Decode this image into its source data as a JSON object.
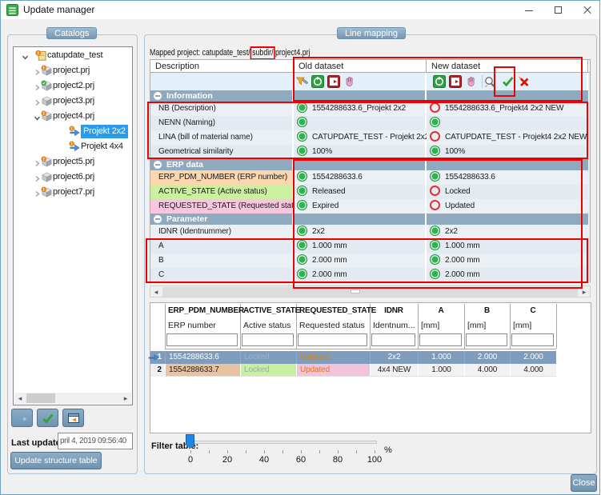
{
  "window": {
    "title": "Update manager"
  },
  "catalogs": {
    "label": "Catalogs",
    "tree": [
      {
        "label": "catupdate_test",
        "level": 0,
        "chev": "open",
        "icon": "folder-alert"
      },
      {
        "label": "project.prj",
        "level": 1,
        "chev": "closed",
        "icon": "cube-alert"
      },
      {
        "label": "project2.prj",
        "level": 1,
        "chev": "closed",
        "icon": "cube-check"
      },
      {
        "label": "project3.prj",
        "level": 1,
        "chev": "closed",
        "icon": "cube"
      },
      {
        "label": "project4.prj",
        "level": 1,
        "chev": "open",
        "icon": "cube-alert"
      },
      {
        "label": "Projekt 2x2",
        "level": 2,
        "chev": "none",
        "icon": "part-alert",
        "selected": true
      },
      {
        "label": "Projekt 4x4",
        "level": 2,
        "chev": "none",
        "icon": "part-alert"
      },
      {
        "label": "project5.prj",
        "level": 1,
        "chev": "closed",
        "icon": "cube-alert"
      },
      {
        "label": "project6.prj",
        "level": 1,
        "chev": "closed",
        "icon": "cube"
      },
      {
        "label": "project7.prj",
        "level": 1,
        "chev": "closed",
        "icon": "cube-alert"
      }
    ],
    "last_update_label": "Last update",
    "last_update_value": "pril 4, 2019 09:56:40",
    "update_button": "Update structure table"
  },
  "line_mapping": {
    "label": "Line mapping",
    "mapped_prefix": "Mapped project: catupdate_test/",
    "mapped_highlight": "subdir/",
    "mapped_suffix": "project4.prj",
    "columns": [
      "Description",
      "Old dataset",
      "New dataset"
    ],
    "old_toolbar": [
      "filter",
      "refresh-green",
      "export-red",
      "hand"
    ],
    "new_toolbar": [
      "refresh-green",
      "export-red",
      "hand",
      "search",
      "check",
      "reject"
    ],
    "sections": [
      {
        "title": "Information",
        "rows": [
          {
            "label": "NB (Description)",
            "old_status": "green",
            "old": "1554288633.6_Projekt 2x2",
            "new_status": "red",
            "new": "1554288633.6_Projekt4 2x2 NEW"
          },
          {
            "label": "NENN (Naming)",
            "old_status": "green",
            "old": "",
            "new_status": "green",
            "new": ""
          },
          {
            "label": "LINA (bill of material name)",
            "old_status": "green",
            "old": "CATUPDATE_TEST - Projekt 2x2",
            "new_status": "red",
            "new": "CATUPDATE_TEST - Projekt4 2x2 NEW"
          },
          {
            "label": "Geometrical similarity",
            "old_status": "green",
            "old": "100%",
            "new_status": "green",
            "new": "100%"
          }
        ]
      },
      {
        "title": "ERP data",
        "rows": [
          {
            "label": "ERP_PDM_NUMBER (ERP number)",
            "label_bg": "#FAD7AF",
            "old_status": "green",
            "old": "1554288633.6",
            "new_status": "green",
            "new": "1554288633.6"
          },
          {
            "label": "ACTIVE_STATE (Active status)",
            "label_bg": "#CBF0A0",
            "old_status": "green",
            "old": "Released",
            "new_status": "red",
            "new": "Locked"
          },
          {
            "label": "REQUESTED_STATE (Requested status)",
            "label_bg": "#F9C6E0",
            "old_status": "green",
            "old": "Expired",
            "new_status": "red",
            "new": "Updated"
          }
        ]
      },
      {
        "title": "Parameter",
        "rows": [
          {
            "label": "IDNR (Identnummer)",
            "old_status": "green",
            "old": "2x2",
            "new_status": "green",
            "new": "2x2"
          },
          {
            "label": "A",
            "old_status": "green",
            "old": "1.000 mm",
            "new_status": "green",
            "new": "1.000 mm"
          },
          {
            "label": "B",
            "old_status": "green",
            "old": "2.000 mm",
            "new_status": "green",
            "new": "2.000 mm"
          },
          {
            "label": "C",
            "old_status": "green",
            "old": "2.000 mm",
            "new_status": "green",
            "new": "2.000 mm"
          }
        ]
      }
    ],
    "table": {
      "columns": [
        {
          "name": "ERP_PDM_NUMBER",
          "sub": "ERP number"
        },
        {
          "name": "ACTIVE_STATE",
          "sub": "Active status"
        },
        {
          "name": "REQUESTED_STATE",
          "sub": "Requested status"
        },
        {
          "name": "IDNR",
          "sub": "Identnum..."
        },
        {
          "name": "A",
          "sub": "[mm]"
        },
        {
          "name": "B",
          "sub": "[mm]"
        },
        {
          "name": "C",
          "sub": "[mm]"
        }
      ],
      "rows": [
        {
          "num": "1",
          "selected": true,
          "cells": [
            "1554288633.6",
            "Locked",
            "Updated",
            "2x2",
            "1.000",
            "2.000",
            "2.000"
          ]
        },
        {
          "num": "2",
          "selected": false,
          "cells": [
            "1554288633.7",
            "Locked",
            "Updated",
            "4x4 NEW",
            "1.000",
            "4.000",
            "4.000"
          ]
        }
      ]
    },
    "filter": {
      "label": "Filter table:",
      "tick_labels": [
        "0",
        "20",
        "40",
        "60",
        "80",
        "100"
      ],
      "unit": "%"
    }
  },
  "close_button": "Close"
}
